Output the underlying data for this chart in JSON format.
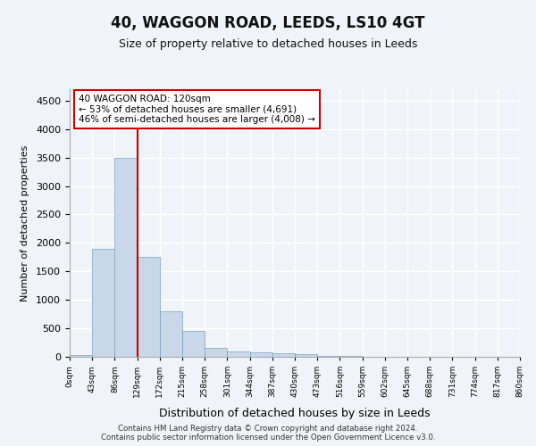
{
  "title": "40, WAGGON ROAD, LEEDS, LS10 4GT",
  "subtitle": "Size of property relative to detached houses in Leeds",
  "xlabel": "Distribution of detached houses by size in Leeds",
  "ylabel": "Number of detached properties",
  "bar_color": "#c8d8e8",
  "bar_edge_color": "#7a9fc0",
  "bin_labels": [
    "0sqm",
    "43sqm",
    "86sqm",
    "129sqm",
    "172sqm",
    "215sqm",
    "258sqm",
    "301sqm",
    "344sqm",
    "387sqm",
    "430sqm",
    "473sqm",
    "516sqm",
    "559sqm",
    "602sqm",
    "645sqm",
    "688sqm",
    "731sqm",
    "774sqm",
    "817sqm",
    "860sqm"
  ],
  "bar_values": [
    30,
    1900,
    3500,
    1750,
    800,
    450,
    150,
    100,
    80,
    60,
    50,
    20,
    10,
    5,
    3,
    2,
    1,
    1,
    0,
    0
  ],
  "ylim": [
    0,
    4700
  ],
  "yticks": [
    0,
    500,
    1000,
    1500,
    2000,
    2500,
    3000,
    3500,
    4000,
    4500
  ],
  "vline_x": 3.0,
  "vline_color": "#cc0000",
  "annotation_text": "40 WAGGON ROAD: 120sqm\n← 53% of detached houses are smaller (4,691)\n46% of semi-detached houses are larger (4,008) →",
  "annotation_box_color": "#ffffff",
  "annotation_box_edge": "#cc0000",
  "footer_text": "Contains HM Land Registry data © Crown copyright and database right 2024.\nContains public sector information licensed under the Open Government Licence v3.0.",
  "background_color": "#f0f4f8",
  "plot_background": "#f0f4f8",
  "grid_color": "#ffffff"
}
